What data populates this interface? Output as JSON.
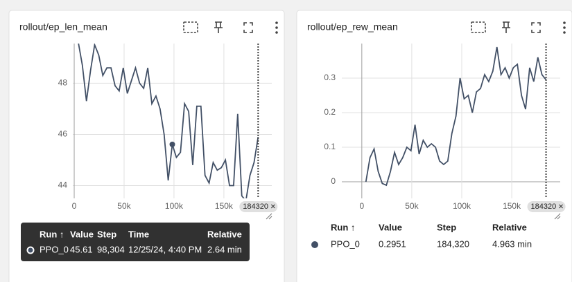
{
  "chart_data": [
    {
      "type": "line",
      "title": "rollout/ep_len_mean",
      "color": "#425066",
      "x": [
        4096,
        8192,
        12288,
        16384,
        20480,
        24576,
        28672,
        32768,
        36864,
        40960,
        45056,
        49152,
        53248,
        57344,
        61440,
        65536,
        69632,
        73728,
        77824,
        81920,
        86016,
        90112,
        94208,
        98304,
        102400,
        106496,
        110592,
        114688,
        118784,
        122880,
        126976,
        131072,
        135168,
        139264,
        143360,
        147456,
        151552,
        155648,
        159744,
        163840,
        167936,
        172032,
        176128,
        180224,
        184320
      ],
      "values": [
        49.6,
        48.7,
        47.3,
        48.5,
        49.5,
        49.1,
        48.3,
        48.6,
        48.6,
        47.9,
        47.7,
        48.6,
        47.6,
        48.1,
        48.6,
        48.0,
        47.8,
        48.6,
        47.2,
        47.5,
        47.0,
        46.0,
        44.2,
        45.61,
        45.1,
        45.3,
        47.2,
        46.9,
        44.8,
        47.1,
        47.1,
        44.4,
        44.1,
        44.9,
        44.6,
        44.7,
        45.0,
        44.0,
        44.0,
        46.8,
        43.6,
        43.4,
        44.4,
        44.9,
        45.9
      ],
      "xlim": [
        -1400,
        198000
      ],
      "ylim": [
        43.5,
        49.55
      ],
      "xticks": [
        0,
        {
          "value": 50000,
          "label": "50k"
        },
        {
          "value": 100000,
          "label": "100k"
        },
        {
          "value": 150000,
          "label": "150k"
        }
      ],
      "yticks": [
        44,
        46,
        48
      ],
      "grid": true,
      "cursor_step": 184320
    },
    {
      "type": "line",
      "title": "rollout/ep_rew_mean",
      "color": "#425066",
      "x": [
        4096,
        8192,
        12288,
        16384,
        20480,
        24576,
        28672,
        32768,
        36864,
        40960,
        45056,
        49152,
        53248,
        57344,
        61440,
        65536,
        69632,
        73728,
        77824,
        81920,
        86016,
        90112,
        94208,
        98304,
        102400,
        106496,
        110592,
        114688,
        118784,
        122880,
        126976,
        131072,
        135168,
        139264,
        143360,
        147456,
        151552,
        155648,
        159744,
        163840,
        167936,
        172032,
        176128,
        180224,
        184320
      ],
      "values": [
        0.0,
        0.07,
        0.095,
        0.03,
        -0.005,
        -0.01,
        0.03,
        0.085,
        0.05,
        0.07,
        0.1,
        0.09,
        0.165,
        0.08,
        0.12,
        0.1,
        0.11,
        0.1,
        0.06,
        0.05,
        0.06,
        0.14,
        0.19,
        0.3,
        0.24,
        0.25,
        0.2,
        0.26,
        0.27,
        0.31,
        0.29,
        0.32,
        0.39,
        0.31,
        0.33,
        0.3,
        0.33,
        0.34,
        0.25,
        0.21,
        0.33,
        0.29,
        0.36,
        0.31,
        0.2951
      ],
      "xlim": [
        -20000,
        198500
      ],
      "ylim": [
        -0.048,
        0.4
      ],
      "xticks": [
        0,
        {
          "value": 50000,
          "label": "50k"
        },
        {
          "value": 100000,
          "label": "100k"
        },
        {
          "value": 150000,
          "label": "150k"
        }
      ],
      "yticks": [
        0,
        0.1,
        0.2,
        0.3
      ],
      "grid": true,
      "cursor_step": 184320
    }
  ],
  "tooltip": {
    "columns": [
      "Run ↑",
      "Value",
      "Step",
      "Time",
      "Relative"
    ],
    "rows": [
      [
        "PPO_0",
        "45.61",
        "98,304",
        "12/25/24, 4:40 PM",
        "2.64 min"
      ]
    ]
  },
  "run_table": {
    "columns": [
      "Run ↑",
      "Value",
      "Step",
      "Relative"
    ],
    "rows": [
      [
        "PPO_0",
        "0.2951",
        "184,320",
        "4.963 min"
      ]
    ]
  }
}
